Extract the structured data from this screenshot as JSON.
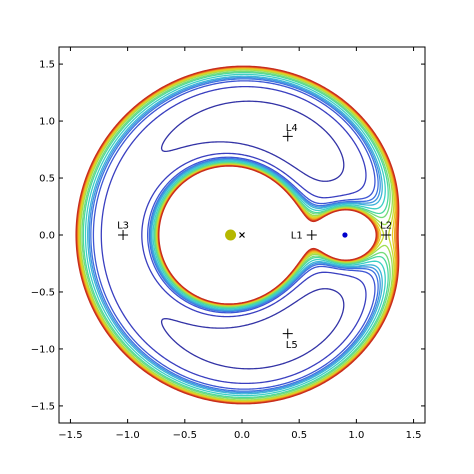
{
  "chart_data": {
    "type": "contour",
    "title": "",
    "xlabel": "",
    "ylabel": "",
    "xlim": [
      -1.6,
      1.6
    ],
    "ylim": [
      -1.65,
      1.65
    ],
    "aspect": "equal",
    "grid": false,
    "legend": "none",
    "xticks": [
      "−1.5",
      "−1.0",
      "−0.5",
      "0.0",
      "0.5",
      "1.0",
      "1.5"
    ],
    "yticks": [
      "1.5",
      "1.0",
      "0.5",
      "0.0",
      "−0.5",
      "−1.0",
      "−1.5"
    ],
    "xtick_values": [
      -1.5,
      -1.0,
      -0.5,
      0.0,
      0.5,
      1.0,
      1.5
    ],
    "ytick_values": [
      1.5,
      1.0,
      0.5,
      0.0,
      -0.5,
      -1.0,
      -1.5
    ],
    "mass_ratio": 0.1,
    "contour_levels": [
      -1.42,
      -1.52,
      -1.6,
      -1.64,
      -1.655,
      -1.665,
      -1.675,
      -1.69,
      -1.705,
      -1.715,
      -1.727,
      -1.735,
      -1.742,
      -1.748,
      -1.753,
      -1.757,
      -1.761
    ],
    "contour_colors": [
      "#2b2b8f",
      "#3333a6",
      "#3a3fc0",
      "#3d55d4",
      "#3f72e0",
      "#3f94e0",
      "#3cb4d8",
      "#3ccfc4",
      "#4cd8a0",
      "#73dc78",
      "#9ede50",
      "#c8dc32",
      "#e6cc24",
      "#f0a820",
      "#ea7c1e",
      "#de4e1c",
      "#c82c1c"
    ],
    "points": [
      {
        "label": "",
        "x": -0.1,
        "y": 0.0,
        "marker": "large-dot",
        "color": "#b5b800"
      },
      {
        "label": "",
        "x": 0.0,
        "y": 0.0,
        "marker": "x",
        "color": "#000000"
      },
      {
        "label": "",
        "x": 0.9,
        "y": 0.0,
        "marker": "small-dot",
        "color": "#0000cc"
      }
    ],
    "lagrange_points": [
      {
        "label": "L1",
        "x": 0.61,
        "y": 0.0
      },
      {
        "label": "L2",
        "x": 1.26,
        "y": 0.0
      },
      {
        "label": "L3",
        "x": -1.04,
        "y": 0.0
      },
      {
        "label": "L4",
        "x": 0.4,
        "y": 0.866
      },
      {
        "label": "L5",
        "x": 0.4,
        "y": -0.866
      }
    ]
  }
}
